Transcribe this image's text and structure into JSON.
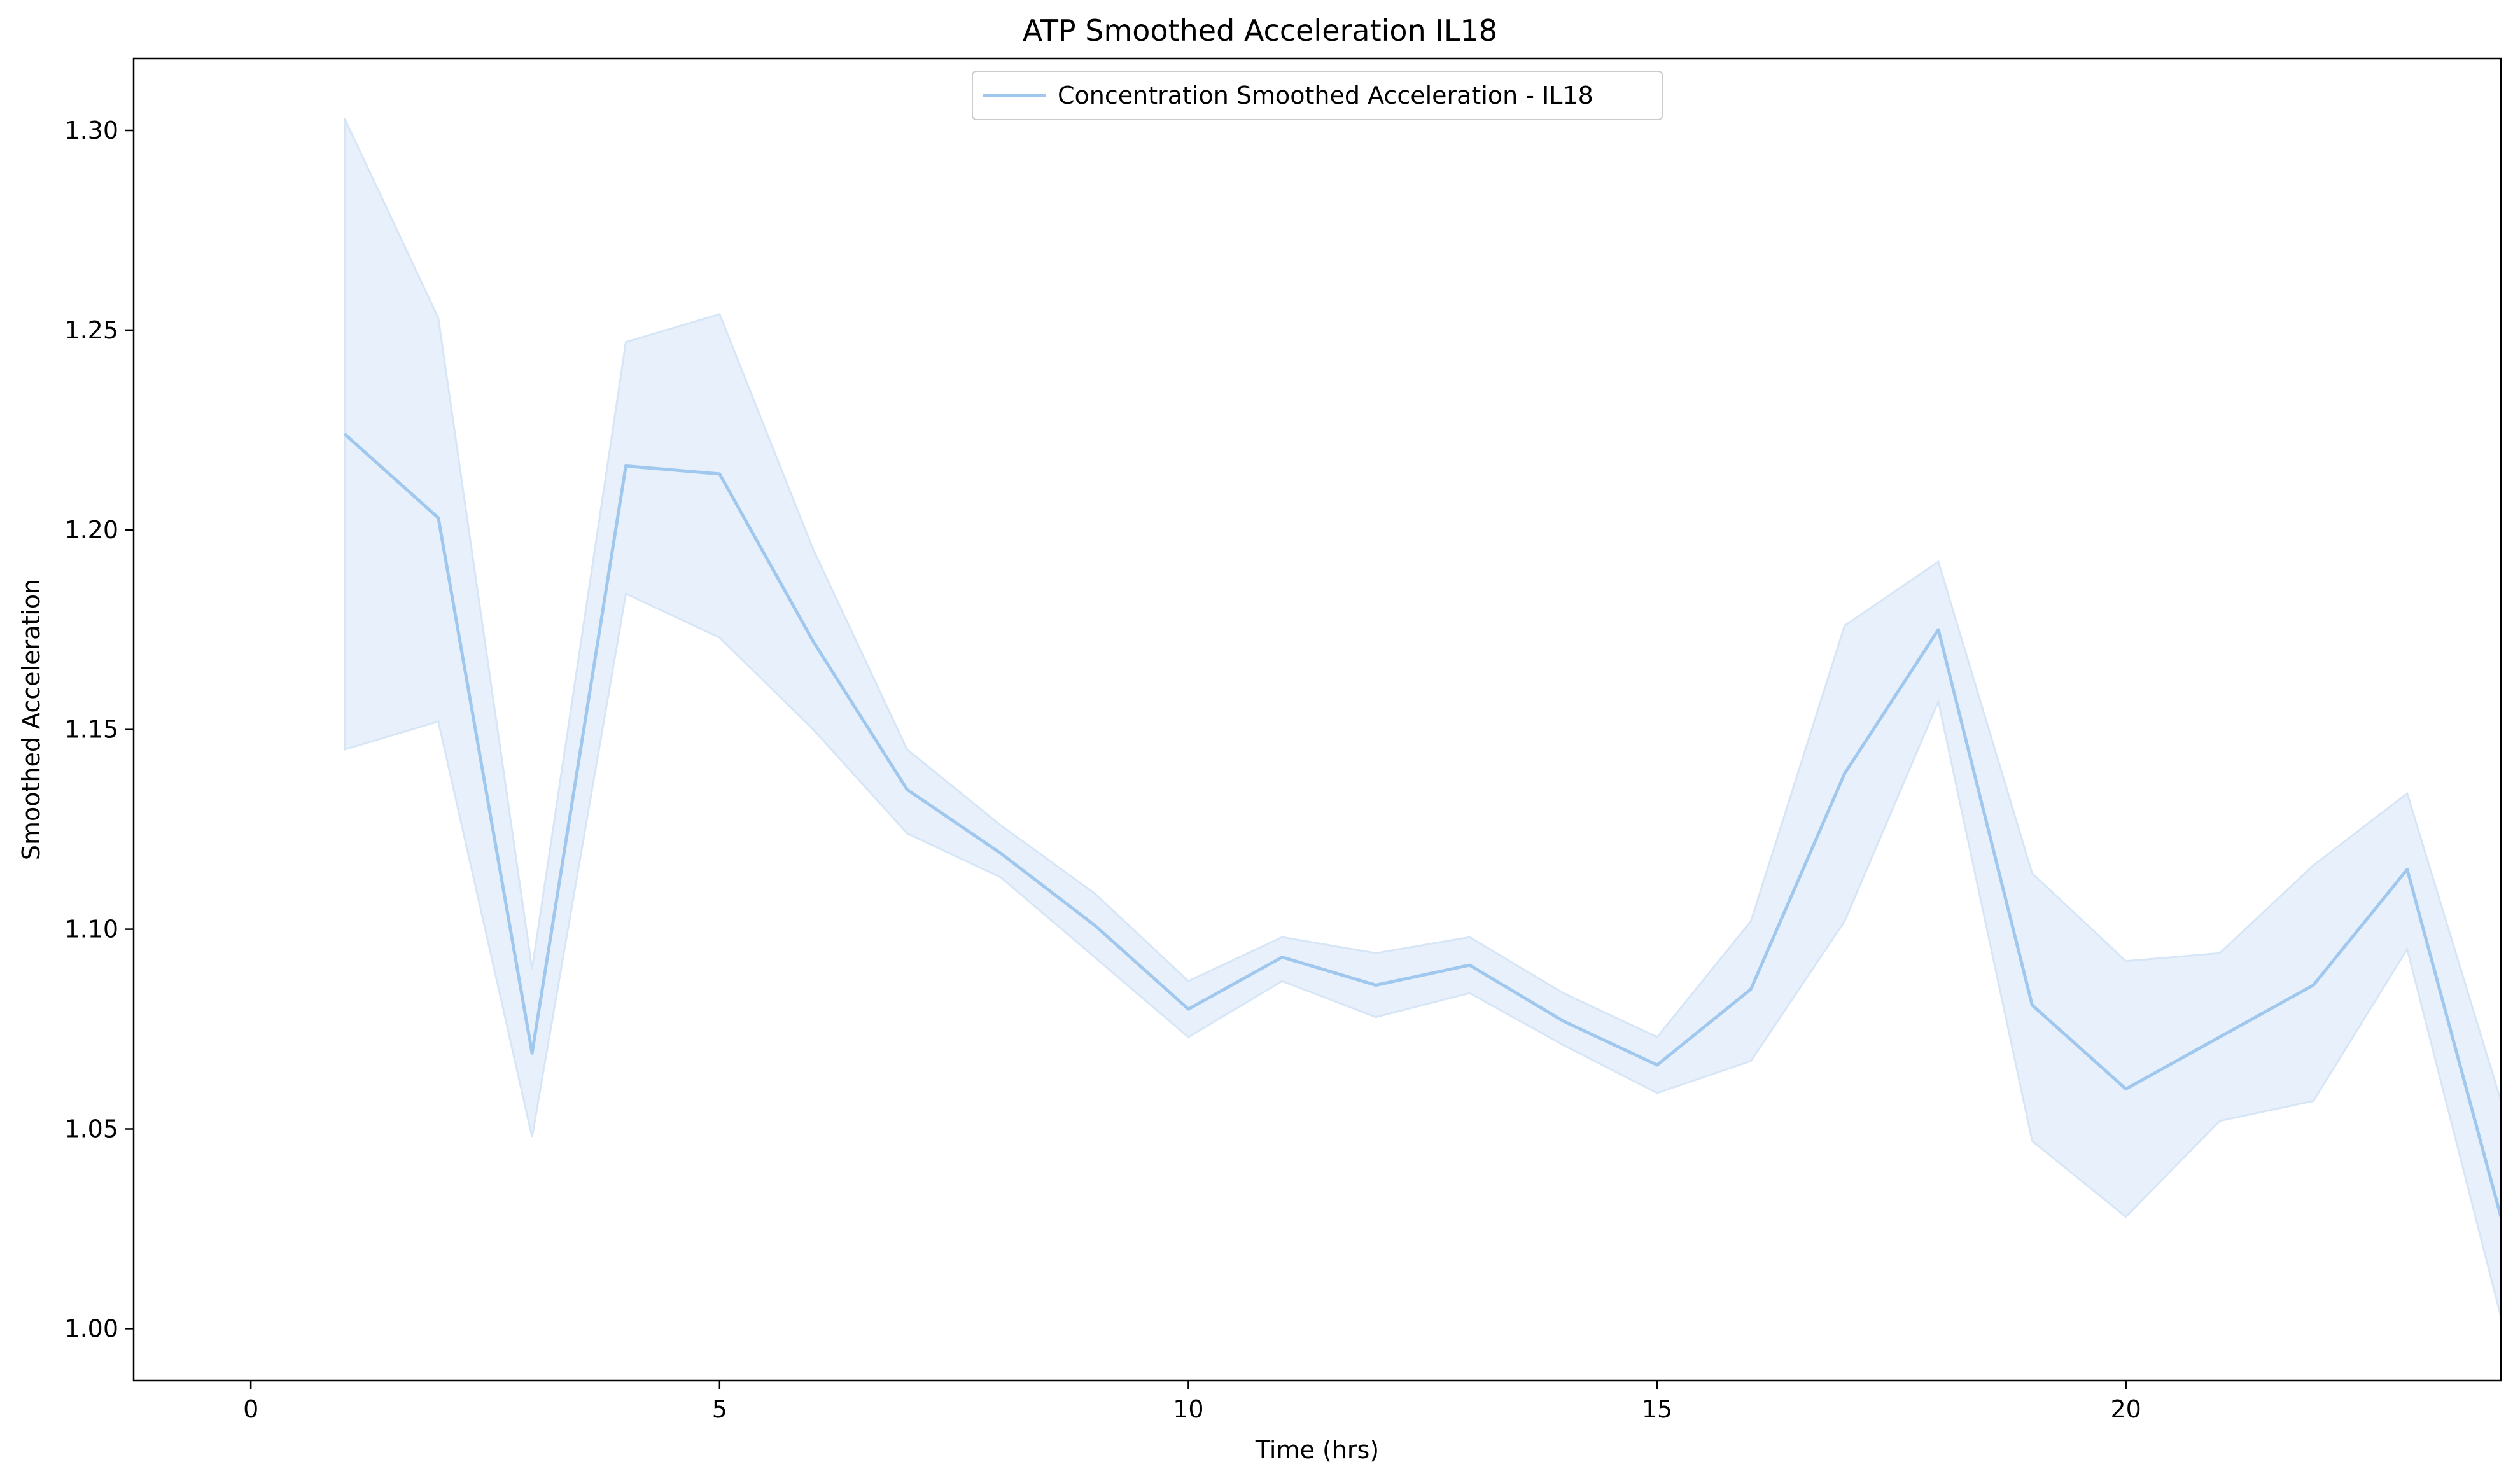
{
  "chart_data": {
    "type": "line",
    "title": "ATP Smoothed Acceleration IL18",
    "xlabel": "Time (hrs)",
    "ylabel": "Smoothed Acceleration",
    "xlim": [
      -1.25,
      24
    ],
    "ylim": [
      0.987,
      1.318
    ],
    "xticks": [
      0,
      5,
      10,
      15,
      20
    ],
    "xtick_labels": [
      "0",
      "5",
      "10",
      "15",
      "20"
    ],
    "yticks": [
      1.0,
      1.05,
      1.1,
      1.15,
      1.2,
      1.25,
      1.3
    ],
    "ytick_labels": [
      "1.00",
      "1.05",
      "1.10",
      "1.15",
      "1.20",
      "1.25",
      "1.30"
    ],
    "grid": false,
    "legend_position": "upper center",
    "colors": {
      "line": "#a0c8ee",
      "band": "#d6e6f7"
    },
    "series": [
      {
        "name": "Concentration Smoothed Acceleration  - IL18",
        "x": [
          1,
          2,
          3,
          4,
          5,
          6,
          7,
          8,
          9,
          10,
          11,
          12,
          13,
          14,
          15,
          16,
          17,
          18,
          19,
          20,
          21,
          22,
          23,
          24
        ],
        "y": [
          1.224,
          1.203,
          1.069,
          1.216,
          1.214,
          1.172,
          1.135,
          1.119,
          1.101,
          1.08,
          1.093,
          1.086,
          1.091,
          1.077,
          1.066,
          1.085,
          1.139,
          1.175,
          1.081,
          1.06,
          1.073,
          1.086,
          1.115,
          1.028
        ],
        "lower": [
          1.145,
          1.152,
          1.048,
          1.184,
          1.173,
          1.15,
          1.124,
          1.113,
          1.093,
          1.073,
          1.087,
          1.078,
          1.084,
          1.071,
          1.059,
          1.067,
          1.102,
          1.157,
          1.047,
          1.028,
          1.052,
          1.057,
          1.095,
          1.003
        ],
        "upper": [
          1.303,
          1.253,
          1.09,
          1.247,
          1.254,
          1.195,
          1.145,
          1.126,
          1.109,
          1.087,
          1.098,
          1.094,
          1.098,
          1.084,
          1.073,
          1.102,
          1.176,
          1.192,
          1.114,
          1.092,
          1.094,
          1.116,
          1.134,
          1.057
        ]
      }
    ]
  }
}
